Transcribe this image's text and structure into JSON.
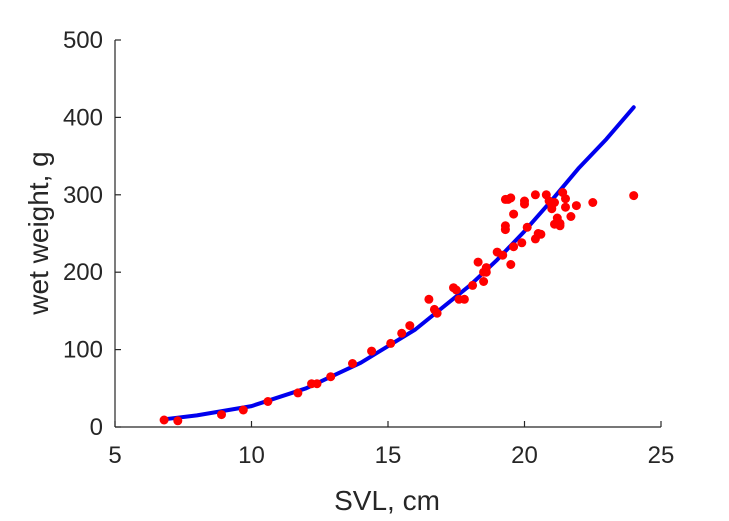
{
  "chart_data": {
    "type": "scatter",
    "title": "",
    "xlabel": "SVL, cm",
    "ylabel": "wet weight, g",
    "xlim": [
      5,
      25
    ],
    "ylim": [
      0,
      500
    ],
    "xticks": [
      "5",
      "10",
      "15",
      "20",
      "25"
    ],
    "yticks": [
      "0",
      "100",
      "200",
      "300",
      "400",
      "500"
    ],
    "grid": false,
    "legend": "none",
    "fit_line": {
      "color": "#0000ee",
      "x": [
        6.8,
        8,
        10,
        12,
        14,
        16,
        18,
        19,
        20,
        21,
        22,
        23,
        24
      ],
      "y": [
        10,
        15,
        27,
        50,
        83,
        126,
        183,
        216,
        253,
        293,
        335,
        372,
        413
      ]
    },
    "points": {
      "color": "#ff0000",
      "x": [
        6.8,
        7.3,
        8.9,
        9.7,
        10.6,
        11.7,
        12.2,
        12.4,
        12.9,
        13.7,
        14.4,
        15.1,
        15.5,
        15.8,
        16.5,
        16.7,
        16.8,
        17.4,
        17.5,
        17.6,
        17.8,
        18.1,
        18.3,
        18.5,
        18.5,
        18.6,
        18.6,
        19.0,
        19.2,
        19.3,
        19.3,
        19.3,
        19.4,
        19.5,
        19.5,
        19.6,
        19.6,
        19.9,
        20.0,
        20.0,
        20.1,
        20.4,
        20.4,
        20.5,
        20.6,
        20.8,
        20.9,
        21.0,
        21.0,
        21.1,
        21.1,
        21.2,
        21.3,
        21.3,
        21.4,
        21.5,
        21.5,
        21.7,
        21.9,
        22.5,
        24.0
      ],
      "y": [
        9,
        8,
        16,
        22,
        33,
        44,
        56,
        56,
        65,
        82,
        98,
        108,
        121,
        131,
        165,
        152,
        147,
        180,
        177,
        165,
        165,
        183,
        213,
        188,
        200,
        206,
        200,
        226,
        222,
        294,
        260,
        255,
        294,
        210,
        296,
        275,
        233,
        238,
        288,
        292,
        258,
        300,
        243,
        250,
        249,
        300,
        292,
        287,
        282,
        262,
        290,
        270,
        263,
        260,
        303,
        295,
        284,
        272,
        286,
        290,
        299
      ]
    }
  }
}
